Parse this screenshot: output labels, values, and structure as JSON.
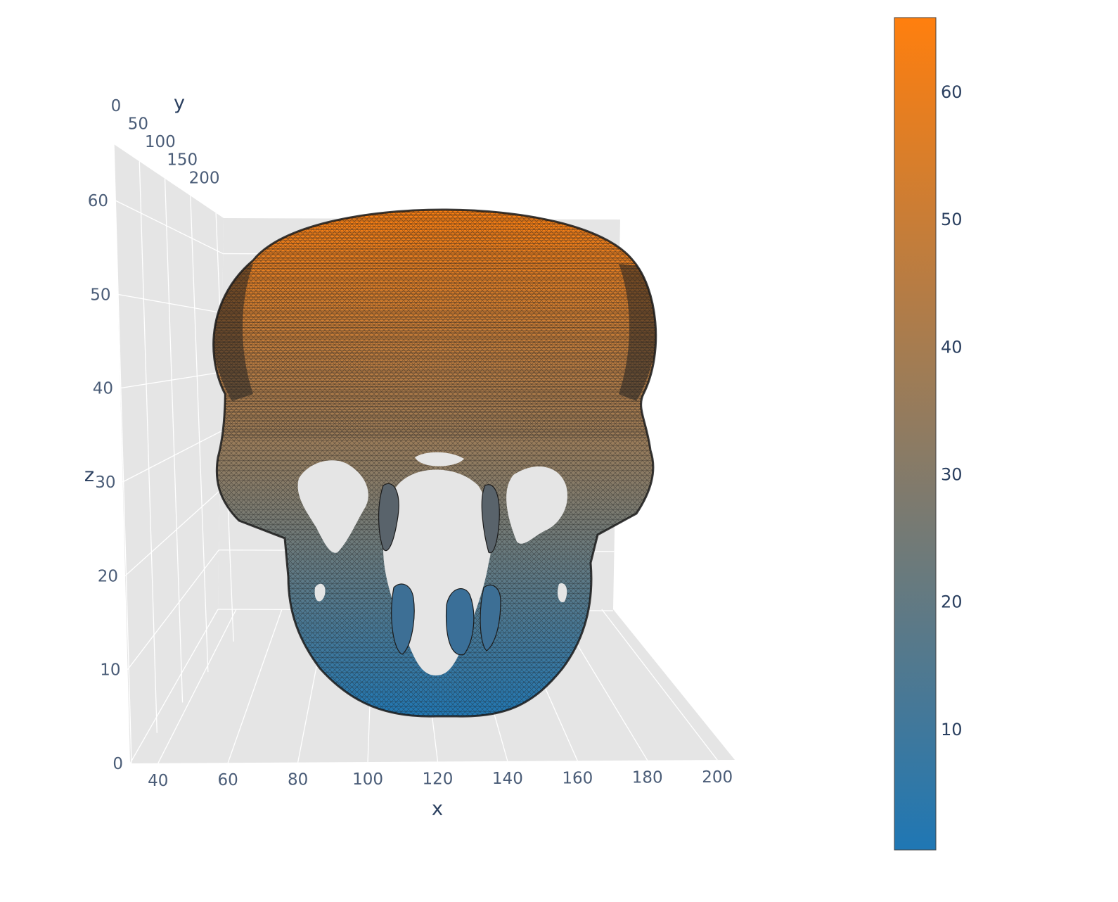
{
  "chart_data": {
    "type": "mesh3d",
    "title": "",
    "axes": {
      "x": {
        "title": "x",
        "ticks": [
          "40",
          "60",
          "80",
          "100",
          "120",
          "140",
          "160",
          "180",
          "200"
        ]
      },
      "y": {
        "title": "y",
        "ticks": [
          "0",
          "50",
          "100",
          "150",
          "200"
        ]
      },
      "z": {
        "title": "z",
        "ticks": [
          "0",
          "10",
          "20",
          "30",
          "40",
          "50",
          "60"
        ]
      }
    },
    "ranges": {
      "x": [
        32,
        205
      ],
      "y": [
        0,
        215
      ],
      "z": [
        0,
        66
      ]
    },
    "grid": true,
    "colorbar": {
      "title": "",
      "ticks": [
        "10",
        "20",
        "30",
        "40",
        "50",
        "60"
      ],
      "range": [
        0.5,
        65.8
      ],
      "colorscale": [
        "#1f77b4",
        "#ff7f0e"
      ],
      "placement": "right"
    },
    "surface": {
      "description": "",
      "intensity_variable": "z",
      "z_range": [
        5,
        63
      ],
      "x_range": [
        55,
        192
      ]
    }
  }
}
